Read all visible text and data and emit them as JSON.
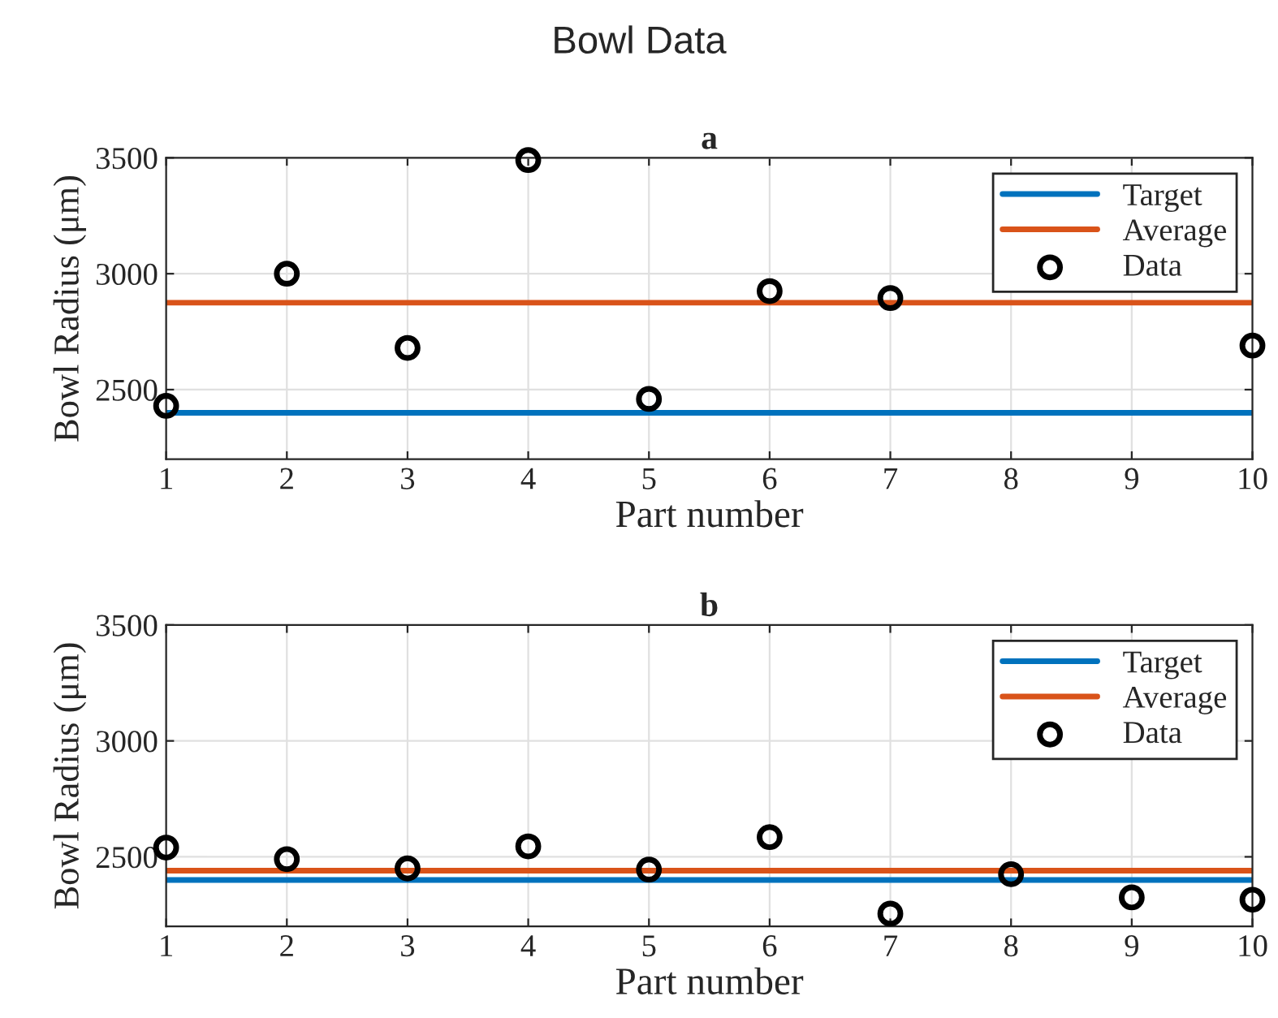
{
  "chart_data": [
    {
      "type": "scatter",
      "title": "Bowl Data",
      "subtitle": "a",
      "xlabel": "Part number",
      "ylabel": "Bowl Radius (μm)",
      "xlim": [
        1,
        10
      ],
      "xticks": [
        1,
        2,
        3,
        4,
        5,
        6,
        7,
        8,
        9,
        10
      ],
      "ylim": [
        2200,
        3500
      ],
      "yticks": [
        2500,
        3000,
        3500
      ],
      "grid": true,
      "legend": "top right",
      "series": [
        {
          "name": "Target",
          "type": "line",
          "color": "#0072bd",
          "x": [
            1,
            10
          ],
          "values": [
            2400,
            2400
          ]
        },
        {
          "name": "Average",
          "type": "line",
          "color": "#d95319",
          "x": [
            1,
            10
          ],
          "values": [
            2875,
            2875
          ]
        },
        {
          "name": "Data",
          "color": "#000000",
          "marker": "circle",
          "x": [
            1,
            2,
            3,
            4,
            5,
            6,
            7,
            8,
            9,
            10
          ],
          "values": [
            2430,
            3000,
            2680,
            3490,
            2460,
            2925,
            2895,
            null,
            null,
            2690
          ]
        }
      ]
    },
    {
      "type": "scatter",
      "subtitle": "b",
      "xlabel": "Part number",
      "ylabel": "Bowl Radius (μm)",
      "xlim": [
        1,
        10
      ],
      "xticks": [
        1,
        2,
        3,
        4,
        5,
        6,
        7,
        8,
        9,
        10
      ],
      "ylim": [
        2200,
        3500
      ],
      "yticks": [
        2500,
        3000,
        3500
      ],
      "grid": true,
      "legend": "top right",
      "series": [
        {
          "name": "Target",
          "type": "line",
          "color": "#0072bd",
          "x": [
            1,
            10
          ],
          "values": [
            2400,
            2400
          ]
        },
        {
          "name": "Average",
          "type": "line",
          "color": "#d95319",
          "x": [
            1,
            10
          ],
          "values": [
            2440,
            2440
          ]
        },
        {
          "name": "Data",
          "color": "#000000",
          "marker": "circle",
          "x": [
            1,
            2,
            3,
            4,
            5,
            6,
            7,
            8,
            9,
            10
          ],
          "values": [
            2540,
            2490,
            2450,
            2545,
            2445,
            2585,
            2255,
            2425,
            2325,
            2315
          ]
        }
      ]
    }
  ]
}
